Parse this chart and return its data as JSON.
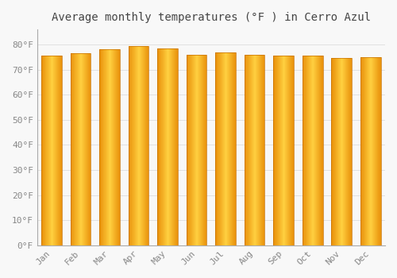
{
  "title": "Average monthly temperatures (°F ) in Cerro Azul",
  "months": [
    "Jan",
    "Feb",
    "Mar",
    "Apr",
    "May",
    "Jun",
    "Jul",
    "Aug",
    "Sep",
    "Oct",
    "Nov",
    "Dec"
  ],
  "values": [
    75.5,
    76.5,
    78.0,
    79.5,
    78.5,
    76.0,
    77.0,
    76.0,
    75.5,
    75.5,
    74.5,
    75.0
  ],
  "bar_color_edge": "#E8900A",
  "bar_color_center": "#FFD040",
  "bar_edge_color": "#C87000",
  "background_color": "#F8F8F8",
  "plot_bg_color": "#F8F8F8",
  "grid_color": "#DDDDDD",
  "ylim": [
    0,
    86
  ],
  "yticks": [
    0,
    10,
    20,
    30,
    40,
    50,
    60,
    70,
    80
  ],
  "title_fontsize": 10,
  "tick_fontsize": 8,
  "title_color": "#444444",
  "tick_color": "#888888",
  "bar_width": 0.7
}
